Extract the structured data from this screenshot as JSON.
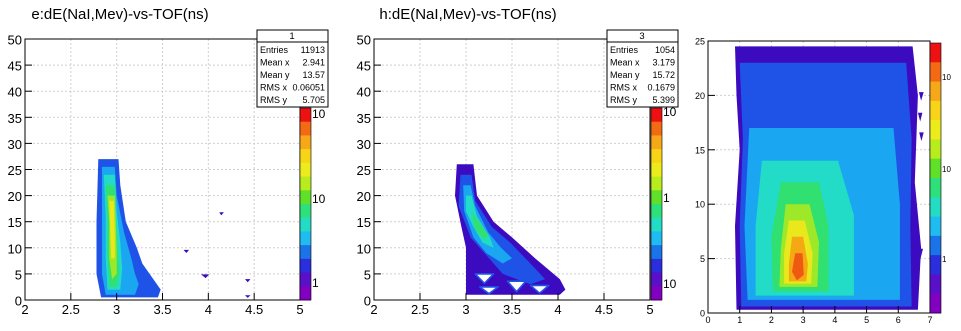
{
  "chart_data": [
    {
      "type": "heatmap",
      "title": "e:dE(NaI,Mev)-vs-TOF(ns)",
      "xlabel": "",
      "ylabel": "",
      "xlim": [
        2,
        5
      ],
      "ylim": [
        0,
        50
      ],
      "xticks": [
        "2",
        "2.5",
        "3",
        "3.5",
        "4",
        "4.5",
        "5"
      ],
      "yticks": [
        "0",
        "5",
        "10",
        "15",
        "20",
        "25",
        "30",
        "35",
        "40",
        "45",
        "50"
      ],
      "palette_labels": [
        "10",
        "10",
        "1"
      ],
      "grid": true,
      "stats": {
        "name": "1",
        "rows": [
          {
            "label": "Entries",
            "value": "11913"
          },
          {
            "label": "Mean x",
            "value": "2.941"
          },
          {
            "label": "Mean y",
            "value": "13.57"
          },
          {
            "label": "RMS x",
            "value": "0.06051"
          },
          {
            "label": "RMS y",
            "value": "5.705"
          }
        ]
      },
      "regions": [
        {
          "points": [
            [
              2.8,
              27
            ],
            [
              3.02,
              27
            ],
            [
              3.04,
              22
            ],
            [
              3.1,
              15
            ],
            [
              3.22,
              10
            ],
            [
              3.28,
              7
            ],
            [
              3.4,
              4
            ],
            [
              3.48,
              2
            ],
            [
              3.45,
              0.5
            ],
            [
              2.83,
              0.5
            ],
            [
              2.78,
              5
            ],
            [
              2.78,
              15
            ]
          ],
          "level": 1
        },
        {
          "points": [
            [
              2.84,
              25.5
            ],
            [
              2.98,
              25.5
            ],
            [
              3.0,
              20
            ],
            [
              3.08,
              13
            ],
            [
              3.16,
              8
            ],
            [
              3.2,
              5
            ],
            [
              3.24,
              3
            ],
            [
              3.2,
              1
            ],
            [
              2.88,
              1
            ],
            [
              2.84,
              5
            ],
            [
              2.84,
              15
            ]
          ],
          "level": 2
        },
        {
          "points": [
            [
              2.86,
              24
            ],
            [
              2.98,
              24
            ],
            [
              3.0,
              17
            ],
            [
              3.04,
              11
            ],
            [
              3.06,
              6
            ],
            [
              3.04,
              2
            ],
            [
              2.9,
              2
            ],
            [
              2.88,
              8
            ],
            [
              2.88,
              16
            ]
          ],
          "level": 3
        },
        {
          "points": [
            [
              2.88,
              22
            ],
            [
              2.98,
              22
            ],
            [
              2.99,
              16
            ],
            [
              3.01,
              10
            ],
            [
              3.03,
              5
            ],
            [
              3.0,
              2.5
            ],
            [
              2.92,
              2.5
            ],
            [
              2.9,
              8
            ],
            [
              2.9,
              16
            ]
          ],
          "level": 4
        },
        {
          "points": [
            [
              2.9,
              20
            ],
            [
              2.98,
              20
            ],
            [
              2.99,
              15
            ],
            [
              3.0,
              9
            ],
            [
              3.0,
              5
            ],
            [
              2.95,
              4
            ],
            [
              2.92,
              8
            ],
            [
              2.92,
              15
            ]
          ],
          "level": 5
        },
        {
          "points": [
            [
              2.92,
              19
            ],
            [
              2.97,
              19
            ],
            [
              2.98,
              12
            ],
            [
              2.98,
              8
            ],
            [
              2.94,
              8
            ],
            [
              2.93,
              13
            ]
          ],
          "level": 6
        },
        {
          "points": [
            [
              3.73,
              9.6
            ],
            [
              3.79,
              9.6
            ],
            [
              3.76,
              9.0
            ]
          ],
          "level": 0
        },
        {
          "points": [
            [
              3.92,
              4.9
            ],
            [
              4.01,
              4.9
            ],
            [
              3.97,
              4.2
            ]
          ],
          "level": 0
        },
        {
          "points": [
            [
              4.12,
              16.8
            ],
            [
              4.17,
              16.8
            ],
            [
              4.14,
              16.2
            ]
          ],
          "level": 0
        },
        {
          "points": [
            [
              4.4,
              4.0
            ],
            [
              4.46,
              4.0
            ],
            [
              4.43,
              3.4
            ]
          ],
          "level": 0
        },
        {
          "points": [
            [
              4.4,
              0.9
            ],
            [
              4.46,
              0.9
            ],
            [
              4.43,
              0.4
            ]
          ],
          "level": 0
        }
      ]
    },
    {
      "type": "heatmap",
      "title": "h:dE(NaI,Mev)-vs-TOF(ns)",
      "xlabel": "",
      "ylabel": "",
      "xlim": [
        2,
        5
      ],
      "ylim": [
        0,
        50
      ],
      "xticks": [
        "2",
        "2.5",
        "3",
        "3.5",
        "4",
        "4.5",
        "5"
      ],
      "yticks": [
        "0",
        "5",
        "10",
        "15",
        "20",
        "25",
        "30",
        "35",
        "40",
        "45",
        "50"
      ],
      "palette_labels": [
        "10",
        "1",
        "10"
      ],
      "grid": true,
      "stats": {
        "name": "3",
        "rows": [
          {
            "label": "Entries",
            "value": "1054"
          },
          {
            "label": "Mean x",
            "value": "3.179"
          },
          {
            "label": "Mean y",
            "value": "15.72"
          },
          {
            "label": "RMS x",
            "value": "0.1679"
          },
          {
            "label": "RMS y",
            "value": "5.399"
          }
        ]
      },
      "regions": [
        {
          "points": [
            [
              2.9,
              26
            ],
            [
              3.08,
              26
            ],
            [
              3.12,
              20
            ],
            [
              3.3,
              15
            ],
            [
              3.5,
              12
            ],
            [
              3.75,
              8
            ],
            [
              4.02,
              4
            ],
            [
              4.08,
              2
            ],
            [
              4.02,
              1
            ],
            [
              3.0,
              1
            ],
            [
              3.0,
              10
            ],
            [
              2.95,
              14
            ],
            [
              2.88,
              20
            ]
          ],
          "level": 0
        },
        {
          "points": [
            [
              2.94,
              24
            ],
            [
              3.06,
              24
            ],
            [
              3.1,
              19
            ],
            [
              3.28,
              14
            ],
            [
              3.48,
              11
            ],
            [
              3.7,
              7
            ],
            [
              3.86,
              4
            ],
            [
              3.7,
              3
            ],
            [
              3.4,
              5
            ],
            [
              3.2,
              9
            ],
            [
              3.05,
              12
            ],
            [
              2.92,
              18
            ]
          ],
          "level": 1
        },
        {
          "points": [
            [
              2.97,
              22
            ],
            [
              3.05,
              22
            ],
            [
              3.1,
              18
            ],
            [
              3.24,
              13
            ],
            [
              3.38,
              10
            ],
            [
              3.5,
              8
            ],
            [
              3.4,
              7
            ],
            [
              3.22,
              9
            ],
            [
              3.08,
              12
            ],
            [
              2.98,
              17
            ]
          ],
          "level": 2
        },
        {
          "points": [
            [
              3.0,
              20
            ],
            [
              3.06,
              20
            ],
            [
              3.12,
              16
            ],
            [
              3.26,
              12
            ],
            [
              3.3,
              10
            ],
            [
              3.18,
              11
            ],
            [
              3.08,
              14
            ],
            [
              3.0,
              17
            ]
          ],
          "level": 3
        },
        {
          "points": [
            [
              3.06,
              17
            ],
            [
              3.14,
              15
            ],
            [
              3.24,
              12.5
            ],
            [
              3.2,
              11.5
            ],
            [
              3.1,
              13.5
            ]
          ],
          "level": 4
        },
        {
          "points": [
            [
              3.1,
              5
            ],
            [
              3.3,
              5
            ],
            [
              3.2,
              3.2
            ]
          ],
          "level": 10
        },
        {
          "points": [
            [
              3.45,
              3.6
            ],
            [
              3.65,
              3.6
            ],
            [
              3.55,
              1.6
            ]
          ],
          "level": 10
        },
        {
          "points": [
            [
              3.15,
              2.5
            ],
            [
              3.35,
              2.5
            ],
            [
              3.25,
              1.2
            ]
          ],
          "level": 10
        },
        {
          "points": [
            [
              3.7,
              2.8
            ],
            [
              3.9,
              2.8
            ],
            [
              3.8,
              1.3
            ]
          ],
          "level": 10
        }
      ]
    },
    {
      "type": "heatmap",
      "title": "",
      "xlabel": "",
      "ylabel": "",
      "xlim": [
        0,
        7
      ],
      "ylim": [
        0,
        25
      ],
      "xticks": [
        "0",
        "1",
        "2",
        "3",
        "4",
        "5",
        "6",
        "7"
      ],
      "yticks": [
        "0",
        "5",
        "10",
        "15",
        "20",
        "25"
      ],
      "palette_labels": [
        "10",
        "10",
        "1"
      ],
      "grid": true,
      "regions": [
        {
          "points": [
            [
              0.85,
              24.5
            ],
            [
              6.45,
              24.5
            ],
            [
              6.62,
              20
            ],
            [
              6.52,
              12
            ],
            [
              6.72,
              6
            ],
            [
              6.62,
              0.3
            ],
            [
              0.9,
              0.3
            ],
            [
              0.85,
              8
            ],
            [
              1.0,
              15
            ],
            [
              0.9,
              20
            ]
          ],
          "level": 0
        },
        {
          "points": [
            [
              1.0,
              23
            ],
            [
              6.25,
              23
            ],
            [
              6.42,
              16
            ],
            [
              6.38,
              8
            ],
            [
              6.42,
              0.6
            ],
            [
              1.05,
              0.6
            ],
            [
              1.0,
              8
            ],
            [
              1.1,
              16
            ]
          ],
          "level": 1
        },
        {
          "points": [
            [
              1.3,
              17
            ],
            [
              5.85,
              17
            ],
            [
              6.05,
              10
            ],
            [
              6.05,
              1.2
            ],
            [
              1.25,
              1.2
            ],
            [
              1.15,
              8
            ]
          ],
          "level": 2
        },
        {
          "points": [
            [
              1.7,
              14
            ],
            [
              4.1,
              14
            ],
            [
              4.6,
              9
            ],
            [
              4.6,
              1.6
            ],
            [
              1.5,
              1.6
            ],
            [
              1.5,
              8
            ]
          ],
          "level": 3
        },
        {
          "points": [
            [
              2.3,
              12
            ],
            [
              3.5,
              12
            ],
            [
              3.8,
              8
            ],
            [
              3.8,
              2.0
            ],
            [
              2.05,
              2.0
            ],
            [
              2.0,
              7
            ]
          ],
          "level": 4
        },
        {
          "points": [
            [
              2.45,
              10
            ],
            [
              3.2,
              10
            ],
            [
              3.5,
              6.5
            ],
            [
              3.45,
              2.4
            ],
            [
              2.25,
              2.4
            ],
            [
              2.3,
              6
            ]
          ],
          "level": 5
        },
        {
          "points": [
            [
              2.55,
              8.5
            ],
            [
              3.05,
              8.5
            ],
            [
              3.3,
              5.5
            ],
            [
              3.25,
              2.7
            ],
            [
              2.4,
              2.7
            ],
            [
              2.4,
              5.5
            ]
          ],
          "level": 6
        },
        {
          "points": [
            [
              2.65,
              7
            ],
            [
              3.0,
              7
            ],
            [
              3.15,
              4.5
            ],
            [
              3.1,
              2.9
            ],
            [
              2.55,
              2.9
            ],
            [
              2.55,
              4.5
            ]
          ],
          "level": 7
        },
        {
          "points": [
            [
              2.75,
              5.5
            ],
            [
              2.98,
              5.5
            ],
            [
              3.02,
              3.5
            ],
            [
              2.8,
              3.0
            ],
            [
              2.65,
              3.8
            ]
          ],
          "level": 8
        },
        {
          "points": [
            [
              6.65,
              20.3
            ],
            [
              6.8,
              20.3
            ],
            [
              6.72,
              19.5
            ]
          ],
          "level": 0
        },
        {
          "points": [
            [
              6.62,
              18.4
            ],
            [
              6.76,
              18.4
            ],
            [
              6.69,
              17.6
            ]
          ],
          "level": 0
        },
        {
          "points": [
            [
              6.66,
              16.6
            ],
            [
              6.8,
              16.6
            ],
            [
              6.73,
              15.8
            ]
          ],
          "level": 0
        },
        {
          "points": [
            [
              6.62,
              5.9
            ],
            [
              6.78,
              5.9
            ],
            [
              6.7,
              5.0
            ]
          ],
          "level": 0
        }
      ]
    }
  ]
}
